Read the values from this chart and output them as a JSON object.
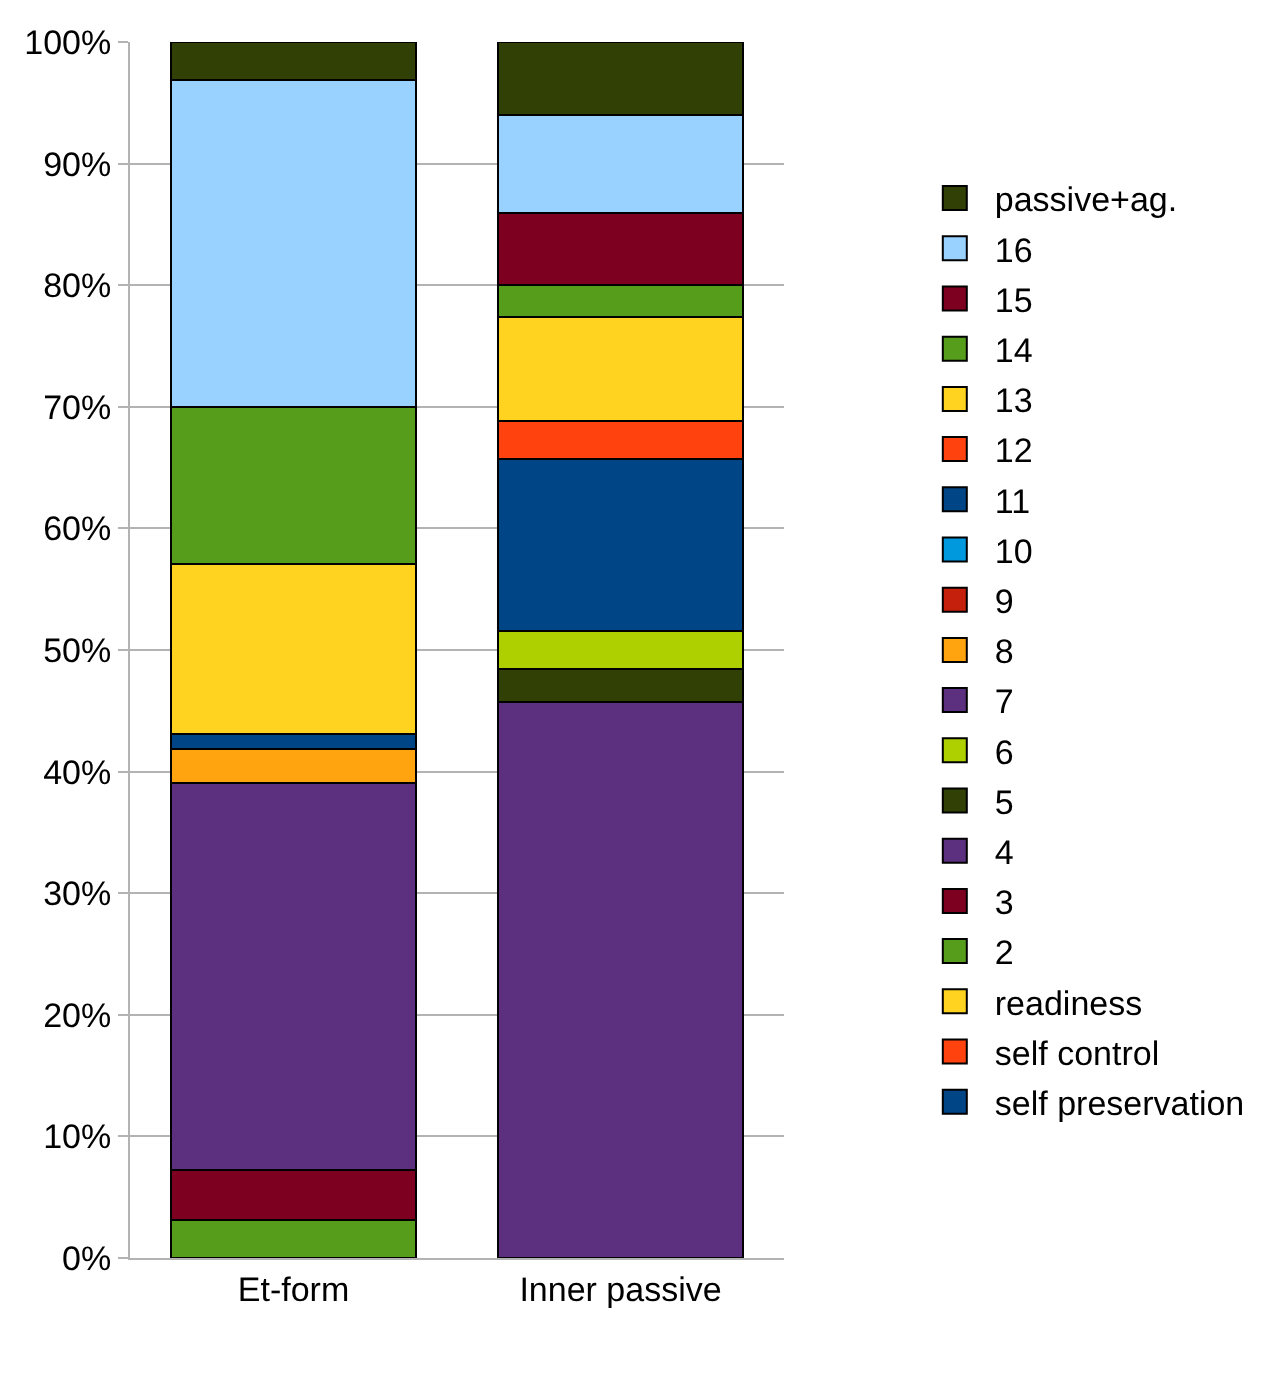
{
  "chart_data": {
    "type": "bar",
    "stacked": true,
    "categories": [
      "Et-form",
      "Inner passive"
    ],
    "series": [
      {
        "name": "self preservation",
        "color": "#004586",
        "values": [
          0,
          0
        ]
      },
      {
        "name": "self control",
        "color": "#ff420e",
        "values": [
          0,
          0
        ]
      },
      {
        "name": "readiness",
        "color": "#ffd320",
        "values": [
          0,
          0
        ]
      },
      {
        "name": "2",
        "color": "#579d1c",
        "values": [
          3.1,
          0
        ]
      },
      {
        "name": "3",
        "color": "#7e0021",
        "values": [
          4.1,
          0
        ]
      },
      {
        "name": "4",
        "color": "#5c307e",
        "values": [
          31.9,
          45.7
        ]
      },
      {
        "name": "5",
        "color": "#314004",
        "values": [
          0,
          2.7
        ]
      },
      {
        "name": "6",
        "color": "#aecf00",
        "values": [
          0,
          3.2
        ]
      },
      {
        "name": "7",
        "color": "#5c307e",
        "values": [
          0,
          0
        ]
      },
      {
        "name": "8",
        "color": "#ffa30e",
        "values": [
          2.8,
          0
        ]
      },
      {
        "name": "9",
        "color": "#c5200b",
        "values": [
          0,
          0
        ]
      },
      {
        "name": "10",
        "color": "#0099dd",
        "values": [
          0,
          0
        ]
      },
      {
        "name": "11",
        "color": "#004586",
        "values": [
          1.2,
          14.1
        ]
      },
      {
        "name": "12",
        "color": "#ff420e",
        "values": [
          0,
          3.1
        ]
      },
      {
        "name": "13",
        "color": "#ffd320",
        "values": [
          14.0,
          8.6
        ]
      },
      {
        "name": "14",
        "color": "#579d1c",
        "values": [
          12.9,
          2.6
        ]
      },
      {
        "name": "15",
        "color": "#7e0021",
        "values": [
          0,
          5.9
        ]
      },
      {
        "name": "16",
        "color": "#99d1ff",
        "values": [
          26.9,
          8.1
        ]
      },
      {
        "name": "passive+ag.",
        "color": "#314004",
        "values": [
          3.1,
          6.0
        ]
      }
    ],
    "ylim": [
      0,
      100
    ],
    "yticks": [
      {
        "value": 0,
        "label": "0%"
      },
      {
        "value": 10,
        "label": "10%"
      },
      {
        "value": 20,
        "label": "20%"
      },
      {
        "value": 30,
        "label": "30%"
      },
      {
        "value": 40,
        "label": "40%"
      },
      {
        "value": 50,
        "label": "50%"
      },
      {
        "value": 60,
        "label": "60%"
      },
      {
        "value": 70,
        "label": "70%"
      },
      {
        "value": 80,
        "label": "80%"
      },
      {
        "value": 90,
        "label": "90%"
      },
      {
        "value": 100,
        "label": "100%"
      }
    ],
    "grid": "y",
    "legend": "right"
  }
}
